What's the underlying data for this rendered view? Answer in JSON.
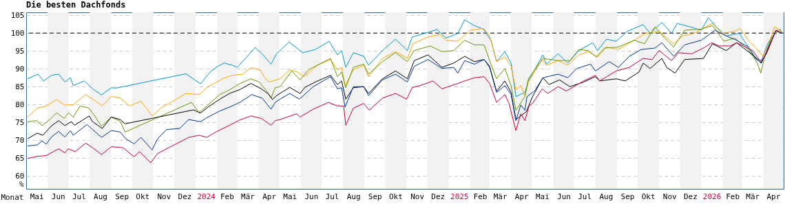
{
  "chart_data": {
    "type": "line",
    "title": "Die besten Dachfonds",
    "xlabel": "Monat",
    "ylabel": "%",
    "xlim": [
      "2023-05-01",
      "2026-04-30"
    ],
    "ylim": [
      56.4,
      105.8
    ],
    "yticks": [
      60,
      65,
      70,
      75,
      80,
      85,
      90,
      95,
      100,
      105
    ],
    "xticks": [
      {
        "value": "2023-05-16",
        "label": "Mai"
      },
      {
        "value": "2023-06-16",
        "label": "Jun"
      },
      {
        "value": "2023-07-16",
        "label": "Jul"
      },
      {
        "value": "2023-08-16",
        "label": "Aug"
      },
      {
        "value": "2023-09-16",
        "label": "Sep"
      },
      {
        "value": "2023-10-16",
        "label": "Okt"
      },
      {
        "value": "2023-11-16",
        "label": "Nov"
      },
      {
        "value": "2023-12-16",
        "label": "Dez"
      },
      {
        "value": "2024-01-16",
        "label": "2024"
      },
      {
        "value": "2024-02-15",
        "label": "Feb"
      },
      {
        "value": "2024-03-16",
        "label": "Mär"
      },
      {
        "value": "2024-04-16",
        "label": "Apr"
      },
      {
        "value": "2024-05-16",
        "label": "Mai"
      },
      {
        "value": "2024-06-16",
        "label": "Jun"
      },
      {
        "value": "2024-07-16",
        "label": "Jul"
      },
      {
        "value": "2024-08-16",
        "label": "Aug"
      },
      {
        "value": "2024-09-16",
        "label": "Sep"
      },
      {
        "value": "2024-10-16",
        "label": "Okt"
      },
      {
        "value": "2024-11-16",
        "label": "Nov"
      },
      {
        "value": "2024-12-16",
        "label": "Dez"
      },
      {
        "value": "2025-01-16",
        "label": "2025"
      },
      {
        "value": "2025-02-15",
        "label": "Feb"
      },
      {
        "value": "2025-03-16",
        "label": "Mär"
      },
      {
        "value": "2025-04-16",
        "label": "Apr"
      },
      {
        "value": "2025-05-16",
        "label": "Mai"
      },
      {
        "value": "2025-06-16",
        "label": "Jun"
      },
      {
        "value": "2025-07-16",
        "label": "Jul"
      },
      {
        "value": "2025-08-16",
        "label": "Aug"
      },
      {
        "value": "2025-09-16",
        "label": "Sep"
      },
      {
        "value": "2025-10-16",
        "label": "Okt"
      },
      {
        "value": "2025-11-16",
        "label": "Nov"
      },
      {
        "value": "2025-12-16",
        "label": "Dez"
      },
      {
        "value": "2026-01-16",
        "label": "2026"
      },
      {
        "value": "2026-02-15",
        "label": "Feb"
      },
      {
        "value": "2026-03-16",
        "label": "Mär"
      },
      {
        "value": "2026-04-15",
        "label": "Apr"
      }
    ],
    "grid": "y",
    "ref_lines": [
      {
        "axis": "y",
        "value": 100,
        "color": "#000000",
        "line_style": "dashed"
      }
    ],
    "bands": [
      {
        "axis": "x",
        "from": "2023-06-01",
        "to": "2023-07-01",
        "color": "#f2f2f2"
      },
      {
        "axis": "x",
        "from": "2023-08-01",
        "to": "2023-09-01",
        "color": "#f2f2f2"
      },
      {
        "axis": "x",
        "from": "2023-10-01",
        "to": "2023-11-01",
        "color": "#f2f2f2"
      },
      {
        "axis": "x",
        "from": "2023-12-01",
        "to": "2024-01-01",
        "color": "#f2f2f2"
      },
      {
        "axis": "x",
        "from": "2024-02-01",
        "to": "2024-03-01",
        "color": "#f2f2f2"
      },
      {
        "axis": "x",
        "from": "2024-04-01",
        "to": "2024-05-01",
        "color": "#f2f2f2"
      },
      {
        "axis": "x",
        "from": "2024-06-01",
        "to": "2024-07-01",
        "color": "#f2f2f2"
      },
      {
        "axis": "x",
        "from": "2024-08-01",
        "to": "2024-09-01",
        "color": "#f2f2f2"
      },
      {
        "axis": "x",
        "from": "2024-10-01",
        "to": "2024-11-01",
        "color": "#f2f2f2"
      },
      {
        "axis": "x",
        "from": "2024-12-01",
        "to": "2025-01-01",
        "color": "#f2f2f2"
      },
      {
        "axis": "x",
        "from": "2025-02-01",
        "to": "2025-03-01",
        "color": "#f2f2f2"
      },
      {
        "axis": "x",
        "from": "2025-04-01",
        "to": "2025-05-01",
        "color": "#f2f2f2"
      },
      {
        "axis": "x",
        "from": "2025-06-01",
        "to": "2025-07-01",
        "color": "#f2f2f2"
      },
      {
        "axis": "x",
        "from": "2025-08-01",
        "to": "2025-09-01",
        "color": "#f2f2f2"
      },
      {
        "axis": "x",
        "from": "2025-10-01",
        "to": "2025-11-01",
        "color": "#f2f2f2"
      },
      {
        "axis": "x",
        "from": "2025-12-01",
        "to": "2026-01-01",
        "color": "#f2f2f2"
      },
      {
        "axis": "x",
        "from": "2026-02-01",
        "to": "2026-03-01",
        "color": "#f2f2f2"
      },
      {
        "axis": "x",
        "from": "2026-04-01",
        "to": "2026-04-30",
        "color": "#f2f2f2"
      }
    ],
    "series": [
      {
        "color": "#0099cc",
        "x": [
          "2023-05-03",
          "2023-05-18",
          "2023-05-26",
          "2023-06-07",
          "2023-06-17",
          "2023-06-26",
          "2023-07-04",
          "2023-07-08",
          "2023-07-24",
          "2023-08-05",
          "2023-08-18",
          "2023-09-01",
          "2023-09-08",
          "2023-09-18",
          "2023-12-18",
          "2024-01-08",
          "2024-01-22",
          "2024-02-01",
          "2024-02-11",
          "2024-02-23",
          "2024-03-01",
          "2024-03-13",
          "2024-03-27",
          "2024-04-06",
          "2024-04-19",
          "2024-04-27",
          "2024-05-15",
          "2024-06-04",
          "2024-06-22",
          "2024-07-12",
          "2024-07-24",
          "2024-07-30",
          "2024-08-05",
          "2024-08-16",
          "2024-08-31",
          "2024-09-07",
          "2024-09-27",
          "2024-10-16",
          "2024-11-02",
          "2024-11-09",
          "2024-12-02",
          "2024-12-15",
          "2024-12-28",
          "2025-01-14",
          "2025-01-24",
          "2025-02-07",
          "2025-02-20",
          "2025-03-03",
          "2025-03-11",
          "2025-03-23",
          "2025-04-01",
          "2025-04-08",
          "2025-04-21",
          "2025-04-26",
          "2025-05-17",
          "2025-05-22",
          "2025-06-08",
          "2025-06-22",
          "2025-07-08",
          "2025-07-28",
          "2025-08-04",
          "2025-08-17",
          "2025-08-31",
          "2025-09-16",
          "2025-10-09",
          "2025-10-19",
          "2025-11-05",
          "2025-11-19",
          "2025-11-27",
          "2025-12-15",
          "2026-01-01",
          "2026-01-11",
          "2026-01-24",
          "2026-02-06",
          "2026-02-25",
          "2026-03-10",
          "2026-03-21",
          "2026-03-29",
          "2026-04-07",
          "2026-04-19",
          "2026-04-28"
        ],
        "values": [
          87.2,
          88.5,
          86.6,
          88.2,
          88.5,
          86.3,
          87.5,
          85.3,
          86.6,
          84.4,
          82.7,
          84.7,
          84.6,
          85.0,
          88.6,
          85.8,
          89.1,
          90.6,
          91.6,
          91.0,
          90.4,
          92.9,
          96.0,
          94.2,
          91.3,
          94.2,
          97.5,
          94.5,
          95.4,
          97.7,
          93.9,
          95.1,
          90.4,
          94.5,
          93.5,
          91.0,
          95.1,
          98.3,
          95.1,
          98.9,
          100.2,
          101.0,
          98.6,
          99.9,
          103.7,
          102.1,
          101.1,
          98.0,
          92.0,
          94.8,
          91.6,
          82.2,
          83.4,
          86.6,
          93.9,
          91.3,
          94.2,
          91.6,
          95.1,
          97.3,
          95.1,
          98.3,
          97.7,
          100.5,
          102.4,
          99.9,
          103.0,
          99.9,
          102.7,
          101.8,
          100.8,
          104.3,
          101.5,
          99.2,
          99.9,
          96.1,
          92.9,
          92.3,
          97.1,
          100.5,
          99.9
        ]
      },
      {
        "color": "#ffa500",
        "x": [
          "2023-05-03",
          "2023-05-17",
          "2023-05-30",
          "2023-06-14",
          "2023-06-25",
          "2023-07-08",
          "2023-07-26",
          "2023-08-05",
          "2023-08-19",
          "2023-09-01",
          "2023-09-14",
          "2023-09-27",
          "2023-10-14",
          "2023-10-30",
          "2023-11-14",
          "2023-11-29",
          "2023-12-18",
          "2024-01-06",
          "2024-01-19",
          "2024-02-09",
          "2024-02-23",
          "2024-03-09",
          "2024-03-21",
          "2024-04-03",
          "2024-04-11",
          "2024-04-16",
          "2024-05-02",
          "2024-05-16",
          "2024-05-27",
          "2024-06-06",
          "2024-06-25",
          "2024-07-14",
          "2024-07-24",
          "2024-07-30",
          "2024-08-04",
          "2024-08-16",
          "2024-08-31",
          "2024-09-07",
          "2024-09-27",
          "2024-10-16",
          "2024-11-02",
          "2024-11-10",
          "2024-12-02",
          "2024-12-19",
          "2024-12-28",
          "2025-01-14",
          "2025-02-01",
          "2025-02-20",
          "2025-03-01",
          "2025-03-11",
          "2025-03-23",
          "2025-04-01",
          "2025-04-08",
          "2025-04-15",
          "2025-04-21",
          "2025-04-26",
          "2025-05-16",
          "2025-05-22",
          "2025-06-08",
          "2025-06-22",
          "2025-07-08",
          "2025-07-22",
          "2025-08-04",
          "2025-08-17",
          "2025-09-03",
          "2025-09-26",
          "2025-10-12",
          "2025-11-01",
          "2025-11-22",
          "2025-12-05",
          "2025-12-21",
          "2026-01-08",
          "2026-01-17",
          "2026-01-31",
          "2026-02-18",
          "2026-02-26",
          "2026-03-10",
          "2026-03-23",
          "2026-03-31",
          "2026-04-08",
          "2026-04-17",
          "2026-04-28"
        ],
        "values": [
          76.5,
          79.0,
          79.5,
          81.4,
          79.9,
          79.9,
          82.8,
          81.5,
          79.6,
          82.3,
          81.8,
          79.6,
          80.9,
          76.8,
          79.3,
          80.9,
          83.1,
          82.8,
          85.0,
          87.2,
          88.2,
          88.5,
          90.3,
          89.7,
          87.2,
          86.3,
          87.2,
          89.7,
          89.1,
          87.8,
          91.0,
          92.6,
          89.7,
          90.4,
          85.3,
          89.7,
          91.0,
          87.8,
          92.9,
          94.8,
          92.9,
          97.0,
          98.9,
          99.6,
          98.0,
          97.7,
          100.8,
          101.3,
          99.2,
          92.0,
          93.3,
          90.7,
          84.1,
          85.3,
          82.4,
          86.3,
          92.6,
          91.0,
          92.3,
          91.0,
          93.9,
          94.8,
          93.3,
          96.1,
          95.4,
          98.0,
          99.9,
          100.5,
          97.0,
          99.2,
          99.9,
          101.8,
          102.7,
          99.9,
          100.5,
          101.3,
          98.0,
          95.4,
          93.5,
          96.6,
          101.8,
          100.2
        ]
      },
      {
        "color": "#669900",
        "x": [
          "2023-05-03",
          "2023-05-16",
          "2023-05-24",
          "2023-06-06",
          "2023-06-14",
          "2023-06-25",
          "2023-07-01",
          "2023-07-08",
          "2023-07-18",
          "2023-07-31",
          "2023-08-09",
          "2023-08-18",
          "2023-09-01",
          "2023-09-14",
          "2023-09-21",
          "2023-12-26",
          "2024-01-06",
          "2024-01-19",
          "2024-02-05",
          "2024-02-19",
          "2024-03-05",
          "2024-03-21",
          "2024-04-02",
          "2024-04-13",
          "2024-04-19",
          "2024-04-25",
          "2024-05-02",
          "2024-05-19",
          "2024-05-31",
          "2024-06-12",
          "2024-07-01",
          "2024-07-14",
          "2024-07-24",
          "2024-07-30",
          "2024-08-05",
          "2024-08-16",
          "2024-08-31",
          "2024-09-07",
          "2024-09-27",
          "2024-10-16",
          "2024-11-02",
          "2024-11-12",
          "2024-12-05",
          "2024-12-22",
          "2025-01-08",
          "2025-01-24",
          "2025-02-07",
          "2025-02-21",
          "2025-03-01",
          "2025-03-11",
          "2025-03-23",
          "2025-04-01",
          "2025-04-08",
          "2025-04-21",
          "2025-04-26",
          "2025-05-17",
          "2025-06-08",
          "2025-06-25",
          "2025-07-08",
          "2025-07-22",
          "2025-08-02",
          "2025-08-14",
          "2025-09-03",
          "2025-09-26",
          "2025-10-11",
          "2025-10-26",
          "2025-11-09",
          "2025-11-22",
          "2025-12-08",
          "2026-01-01",
          "2026-01-17",
          "2026-02-03",
          "2026-02-18",
          "2026-03-10",
          "2026-03-23",
          "2026-03-28",
          "2026-04-02",
          "2026-04-12",
          "2026-04-25",
          "2026-04-28"
        ],
        "values": [
          75.2,
          75.5,
          74.1,
          76.1,
          77.7,
          76.1,
          77.7,
          76.5,
          79.6,
          79.0,
          76.5,
          73.9,
          76.5,
          75.3,
          72.3,
          80.6,
          77.7,
          79.9,
          82.8,
          84.1,
          85.9,
          87.2,
          86.3,
          83.7,
          81.8,
          84.7,
          85.0,
          89.4,
          86.9,
          89.7,
          91.6,
          92.9,
          87.8,
          89.1,
          84.7,
          90.4,
          91.3,
          88.5,
          92.0,
          94.5,
          92.0,
          95.1,
          96.4,
          94.8,
          95.1,
          98.0,
          96.7,
          96.7,
          92.3,
          87.2,
          90.1,
          85.3,
          78.4,
          82.2,
          87.2,
          92.9,
          92.3,
          92.3,
          95.4,
          95.1,
          93.3,
          95.8,
          96.1,
          98.0,
          97.0,
          101.8,
          98.6,
          96.1,
          100.8,
          101.1,
          102.1,
          97.7,
          98.6,
          95.4,
          91.6,
          88.8,
          92.9,
          98.6,
          101.1,
          99.9
        ]
      },
      {
        "color": "#000000",
        "x": [
          "2023-05-03",
          "2023-05-17",
          "2023-05-25",
          "2023-06-07",
          "2023-06-17",
          "2023-06-26",
          "2023-07-05",
          "2023-07-10",
          "2023-07-31",
          "2023-08-05",
          "2023-08-19",
          "2023-09-01",
          "2023-09-14",
          "2023-09-21",
          "2023-12-29",
          "2024-01-08",
          "2024-01-19",
          "2024-02-05",
          "2024-02-19",
          "2024-03-05",
          "2024-03-21",
          "2024-04-05",
          "2024-04-16",
          "2024-04-21",
          "2024-04-27",
          "2024-05-16",
          "2024-05-31",
          "2024-06-07",
          "2024-06-22",
          "2024-07-14",
          "2024-07-24",
          "2024-07-30",
          "2024-08-05",
          "2024-08-16",
          "2024-08-31",
          "2024-09-07",
          "2024-09-27",
          "2024-10-16",
          "2024-11-02",
          "2024-11-12",
          "2024-12-02",
          "2024-12-22",
          "2025-01-08",
          "2025-01-24",
          "2025-02-07",
          "2025-02-21",
          "2025-03-01",
          "2025-03-11",
          "2025-03-23",
          "2025-04-01",
          "2025-04-08",
          "2025-04-21",
          "2025-04-23",
          "2025-05-02",
          "2025-05-17",
          "2025-05-26",
          "2025-06-10",
          "2025-06-25",
          "2025-07-15",
          "2025-08-01",
          "2025-08-07",
          "2025-08-31",
          "2025-09-13",
          "2025-10-03",
          "2025-10-09",
          "2025-10-19",
          "2025-11-05",
          "2025-11-12",
          "2025-11-24",
          "2025-12-08",
          "2026-01-04",
          "2026-01-17",
          "2026-02-06",
          "2026-02-21",
          "2026-03-08",
          "2026-03-20",
          "2026-03-28",
          "2026-04-05",
          "2026-04-19",
          "2026-04-28"
        ],
        "values": [
          70.4,
          72.0,
          71.4,
          74.1,
          75.5,
          74.1,
          75.2,
          74.2,
          76.8,
          75.2,
          73.3,
          76.5,
          75.8,
          74.6,
          78.5,
          77.6,
          79.3,
          81.5,
          83.1,
          84.2,
          85.9,
          84.4,
          82.8,
          81.4,
          82.5,
          84.8,
          83.1,
          84.8,
          86.3,
          88.2,
          85.6,
          86.6,
          81.5,
          84.7,
          85.0,
          83.1,
          87.2,
          89.4,
          87.2,
          92.3,
          93.9,
          90.4,
          91.6,
          93.5,
          92.0,
          92.6,
          90.7,
          83.7,
          86.6,
          83.4,
          75.8,
          77.7,
          78.0,
          82.2,
          87.5,
          85.6,
          86.9,
          85.0,
          86.3,
          87.8,
          86.6,
          87.2,
          86.6,
          89.1,
          91.6,
          90.1,
          92.9,
          90.4,
          88.8,
          92.6,
          92.9,
          97.0,
          95.1,
          97.3,
          95.1,
          93.3,
          91.6,
          94.2,
          100.8,
          99.9
        ]
      },
      {
        "color": "#003399",
        "x": [
          "2023-05-03",
          "2023-05-17",
          "2023-05-24",
          "2023-05-30",
          "2023-06-06",
          "2023-06-17",
          "2023-06-26",
          "2023-07-04",
          "2023-07-08",
          "2023-07-28",
          "2023-08-05",
          "2023-08-18",
          "2023-09-01",
          "2023-09-14",
          "2023-09-22",
          "2023-10-04",
          "2023-10-14",
          "2023-10-30",
          "2023-11-07",
          "2023-11-20",
          "2023-12-09",
          "2023-12-22",
          "2024-01-08",
          "2024-01-19",
          "2024-02-05",
          "2024-02-19",
          "2024-03-05",
          "2024-03-22",
          "2024-04-06",
          "2024-04-19",
          "2024-04-25",
          "2024-05-02",
          "2024-05-16",
          "2024-05-30",
          "2024-06-19",
          "2024-07-14",
          "2024-07-24",
          "2024-07-30",
          "2024-08-04",
          "2024-08-16",
          "2024-08-31",
          "2024-09-07",
          "2024-09-27",
          "2024-10-16",
          "2024-11-02",
          "2024-11-12",
          "2024-12-02",
          "2024-12-22",
          "2025-01-08",
          "2025-01-14",
          "2025-01-24",
          "2025-02-07",
          "2025-02-21",
          "2025-03-01",
          "2025-03-11",
          "2025-03-23",
          "2025-04-01",
          "2025-04-08",
          "2025-04-15",
          "2025-04-21",
          "2025-04-24",
          "2025-05-05",
          "2025-05-17",
          "2025-06-08",
          "2025-06-22",
          "2025-07-05",
          "2025-07-25",
          "2025-08-01",
          "2025-08-21",
          "2025-09-03",
          "2025-09-19",
          "2025-10-06",
          "2025-10-26",
          "2025-11-05",
          "2025-11-22",
          "2025-12-08",
          "2026-01-01",
          "2026-01-21",
          "2026-02-06",
          "2026-02-21",
          "2026-03-10",
          "2026-03-20",
          "2026-03-29",
          "2026-04-08",
          "2026-04-19",
          "2026-04-28"
        ],
        "values": [
          68.4,
          68.7,
          69.8,
          68.9,
          70.8,
          72.5,
          70.9,
          72.7,
          71.4,
          74.4,
          73.0,
          70.8,
          72.7,
          72.3,
          70.4,
          69.0,
          70.8,
          67.3,
          70.4,
          73.0,
          73.3,
          75.8,
          75.2,
          76.5,
          78.2,
          79.3,
          80.6,
          82.8,
          81.8,
          78.7,
          80.6,
          81.5,
          83.1,
          81.5,
          85.0,
          87.8,
          84.4,
          84.7,
          79.3,
          85.0,
          85.0,
          82.5,
          86.9,
          88.5,
          86.3,
          90.7,
          92.6,
          90.1,
          90.4,
          88.8,
          92.3,
          91.3,
          92.6,
          90.4,
          83.4,
          85.3,
          82.8,
          75.5,
          79.9,
          78.4,
          82.2,
          83.8,
          87.5,
          88.5,
          87.5,
          90.1,
          91.3,
          89.4,
          92.0,
          90.4,
          93.5,
          95.4,
          95.8,
          97.3,
          93.5,
          96.7,
          98.0,
          100.8,
          99.2,
          98.0,
          96.1,
          92.9,
          91.6,
          96.1,
          100.8,
          99.9
        ]
      },
      {
        "color": "#cc0033",
        "x": [
          "2023-05-03",
          "2023-05-17",
          "2023-05-30",
          "2023-06-17",
          "2023-06-26",
          "2023-07-01",
          "2023-07-11",
          "2023-07-26",
          "2023-08-05",
          "2023-08-18",
          "2023-09-01",
          "2023-09-18",
          "2023-10-04",
          "2023-10-12",
          "2023-10-28",
          "2023-11-07",
          "2023-11-20",
          "2023-12-09",
          "2023-12-22",
          "2024-01-06",
          "2024-01-17",
          "2024-02-01",
          "2024-02-19",
          "2024-03-05",
          "2024-03-21",
          "2024-04-05",
          "2024-04-19",
          "2024-04-25",
          "2024-05-02",
          "2024-05-26",
          "2024-05-31",
          "2024-06-19",
          "2024-07-11",
          "2024-07-24",
          "2024-08-02",
          "2024-08-05",
          "2024-08-16",
          "2024-08-31",
          "2024-09-08",
          "2024-09-27",
          "2024-10-16",
          "2024-11-01",
          "2024-11-09",
          "2024-11-25",
          "2024-12-09",
          "2024-12-22",
          "2025-01-14",
          "2025-01-24",
          "2025-02-07",
          "2025-02-21",
          "2025-03-01",
          "2025-03-11",
          "2025-03-23",
          "2025-03-29",
          "2025-04-08",
          "2025-04-15",
          "2025-04-21",
          "2025-04-27",
          "2025-05-02",
          "2025-05-16",
          "2025-05-24",
          "2025-06-08",
          "2025-06-20",
          "2025-07-15",
          "2025-08-01",
          "2025-08-07",
          "2025-08-31",
          "2025-09-19",
          "2025-10-09",
          "2025-10-22",
          "2025-11-01",
          "2025-11-19",
          "2025-11-29",
          "2025-12-18",
          "2026-01-04",
          "2026-01-16",
          "2026-01-27",
          "2026-02-12",
          "2026-02-21",
          "2026-03-06",
          "2026-03-16",
          "2026-03-28",
          "2026-04-05",
          "2026-04-19",
          "2026-04-28"
        ],
        "values": [
          64.9,
          65.5,
          65.7,
          67.6,
          66.5,
          67.6,
          66.8,
          69.2,
          67.9,
          66.0,
          68.2,
          67.9,
          65.4,
          66.8,
          63.7,
          66.3,
          67.6,
          69.5,
          70.8,
          71.4,
          70.8,
          72.5,
          74.2,
          75.7,
          76.8,
          76.1,
          74.2,
          75.5,
          75.8,
          77.4,
          76.5,
          78.7,
          80.6,
          79.6,
          79.6,
          74.2,
          79.0,
          80.3,
          78.4,
          81.8,
          83.1,
          81.5,
          84.7,
          85.6,
          86.6,
          84.4,
          85.9,
          86.6,
          87.5,
          87.8,
          85.9,
          80.6,
          82.8,
          80.3,
          72.7,
          77.4,
          75.5,
          79.6,
          80.3,
          84.4,
          83.1,
          85.0,
          83.8,
          86.6,
          88.2,
          86.6,
          89.4,
          90.4,
          92.9,
          92.6,
          95.1,
          92.3,
          94.5,
          94.2,
          95.8,
          97.3,
          96.4,
          96.4,
          97.3,
          96.1,
          95.1,
          92.0,
          94.2,
          100.8,
          99.9
        ]
      }
    ]
  }
}
